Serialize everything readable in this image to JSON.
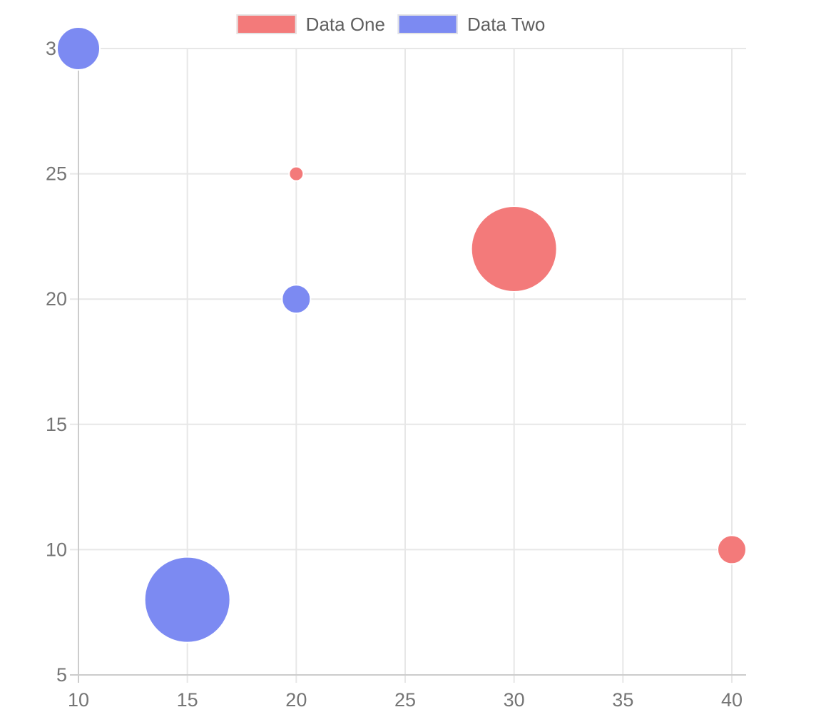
{
  "chart_data": {
    "type": "scatter",
    "subtype": "bubble",
    "title": "",
    "legend": {
      "position": "top",
      "entries": [
        "Data One",
        "Data Two"
      ]
    },
    "series": [
      {
        "name": "Data One",
        "color": "#f37a7a",
        "points": [
          {
            "x": 20,
            "y": 25,
            "r": 5
          },
          {
            "x": 30,
            "y": 22,
            "r": 30
          },
          {
            "x": 40,
            "y": 10,
            "r": 10
          }
        ]
      },
      {
        "name": "Data Two",
        "color": "#7c8af2",
        "points": [
          {
            "x": 10,
            "y": 30,
            "r": 15
          },
          {
            "x": 20,
            "y": 20,
            "r": 10
          },
          {
            "x": 15,
            "y": 8,
            "r": 30
          }
        ]
      }
    ],
    "x_axis": {
      "min": 10,
      "max": 40,
      "ticks": [
        10,
        15,
        20,
        25,
        30,
        35,
        40
      ]
    },
    "y_axis": {
      "min": 5,
      "max": 30,
      "ticks": [
        5,
        10,
        15,
        20,
        25,
        30
      ]
    },
    "grid": true,
    "radius_pixel_scale": 2,
    "colors": {
      "grid_line": "#e7e7e7",
      "axis_edge_line": "#cccccc",
      "tick_text": "#757575",
      "legend_text": "#5f5f5f",
      "point_border": "#ffffff",
      "legend_swatch_border": "#e4e4e4",
      "background": "#ffffff"
    }
  }
}
